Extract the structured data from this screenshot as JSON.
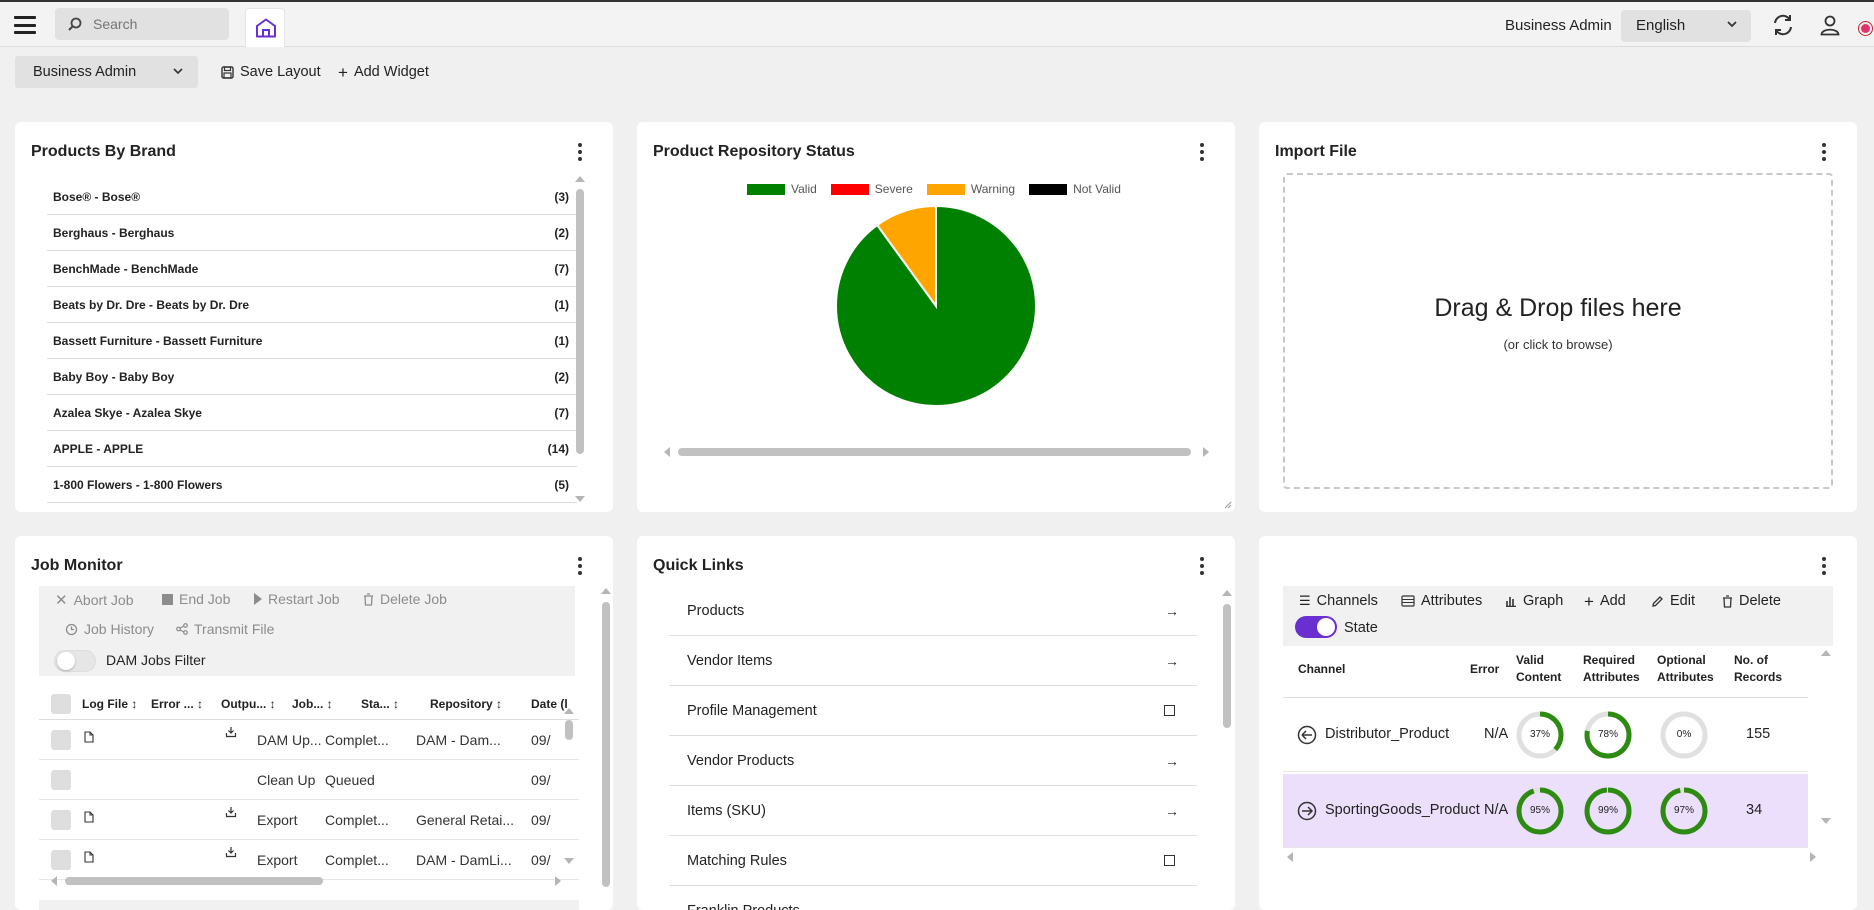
{
  "topbar": {
    "search_placeholder": "Search",
    "user_name": "Business Admin",
    "language": "English",
    "icons": [
      "menu-icon",
      "search-icon",
      "home-icon",
      "refresh-icon",
      "user-icon"
    ]
  },
  "toolbar": {
    "layout_select": "Business Admin",
    "save_layout": "Save Layout",
    "add_widget": "Add Widget"
  },
  "products_by_brand": {
    "title": "Products By Brand",
    "items": [
      {
        "label": "Bose® - Bose®",
        "count": "(3)"
      },
      {
        "label": "Berghaus - Berghaus",
        "count": "(2)"
      },
      {
        "label": "BenchMade - BenchMade",
        "count": "(7)"
      },
      {
        "label": "Beats by Dr. Dre - Beats by Dr. Dre",
        "count": "(1)"
      },
      {
        "label": "Bassett Furniture - Bassett Furniture",
        "count": "(1)"
      },
      {
        "label": "Baby Boy - Baby Boy",
        "count": "(2)"
      },
      {
        "label": "Azalea Skye - Azalea Skye",
        "count": "(7)"
      },
      {
        "label": "APPLE - APPLE",
        "count": "(14)"
      },
      {
        "label": "1-800 Flowers - 1-800 Flowers",
        "count": "(5)"
      }
    ]
  },
  "repository_status": {
    "title": "Product Repository Status",
    "legend": [
      {
        "label": "Valid",
        "color": "#008000"
      },
      {
        "label": "Severe",
        "color": "#ff0000"
      },
      {
        "label": "Warning",
        "color": "#ffa500"
      },
      {
        "label": "Not Valid",
        "color": "#000000"
      }
    ]
  },
  "chart_data": {
    "type": "pie",
    "title": "Product Repository Status",
    "categories": [
      "Valid",
      "Severe",
      "Warning",
      "Not Valid"
    ],
    "values": [
      90,
      0,
      10,
      0
    ],
    "colors": [
      "#008000",
      "#ff0000",
      "#ffa500",
      "#000000"
    ],
    "legend_position": "top"
  },
  "import_file": {
    "title": "Import File",
    "drop_text": "Drag & Drop files here",
    "browse_text": "(or click to browse)"
  },
  "job_monitor": {
    "title": "Job Monitor",
    "actions": [
      "Abort Job",
      "End Job",
      "Restart Job",
      "Delete Job",
      "Job History",
      "Transmit File"
    ],
    "filter_label": "DAM Jobs Filter",
    "columns": [
      "Log File",
      "Error ...",
      "Outpu...",
      "Job...",
      "Sta...",
      "Repository",
      "Date (l"
    ],
    "rows": [
      {
        "job": "DAM Up...",
        "status": "Complet...",
        "repository": "DAM - Dam...",
        "date": "09/",
        "log": true,
        "output": true
      },
      {
        "job": "Clean Up",
        "status": "Queued",
        "repository": "",
        "date": "09/",
        "log": false,
        "output": false
      },
      {
        "job": "Export",
        "status": "Complet...",
        "repository": "General Retai...",
        "date": "09/",
        "log": true,
        "output": true
      },
      {
        "job": "Export",
        "status": "Complet...",
        "repository": "DAM - DamLi...",
        "date": "09/",
        "log": true,
        "output": true
      }
    ]
  },
  "quick_links": {
    "title": "Quick Links",
    "items": [
      {
        "label": "Products",
        "icon": "arrow-right-icon"
      },
      {
        "label": "Vendor Items",
        "icon": "arrow-right-icon"
      },
      {
        "label": "Profile Management",
        "icon": "square-icon"
      },
      {
        "label": "Vendor Products",
        "icon": "arrow-right-icon"
      },
      {
        "label": "Items (SKU)",
        "icon": "arrow-right-icon"
      },
      {
        "label": "Matching Rules",
        "icon": "square-icon"
      },
      {
        "label": "Franklin Products",
        "icon": "arrow-right-icon"
      }
    ]
  },
  "channels": {
    "actions": [
      "Channels",
      "Attributes",
      "Graph",
      "Add",
      "Edit",
      "Delete"
    ],
    "state_label": "State",
    "state_on": true,
    "columns": {
      "channel": "Channel",
      "error": "Error",
      "valid": [
        "Valid",
        "Content"
      ],
      "required": [
        "Required",
        "Attributes"
      ],
      "optional": [
        "Optional",
        "Attributes"
      ],
      "records": [
        "No. of",
        "Records"
      ]
    },
    "rows": [
      {
        "name": "Distributor_Product",
        "error": "N/A",
        "valid": 37,
        "valid_label": "37%",
        "required": 78,
        "required_label": "78%",
        "optional": 0,
        "optional_label": "0%",
        "records": "155"
      },
      {
        "name": "SportingGoods_Product",
        "error": "N/A",
        "valid": 95,
        "valid_label": "95%",
        "required": 99,
        "required_label": "99%",
        "optional": 97,
        "optional_label": "97%",
        "records": "34"
      }
    ]
  }
}
